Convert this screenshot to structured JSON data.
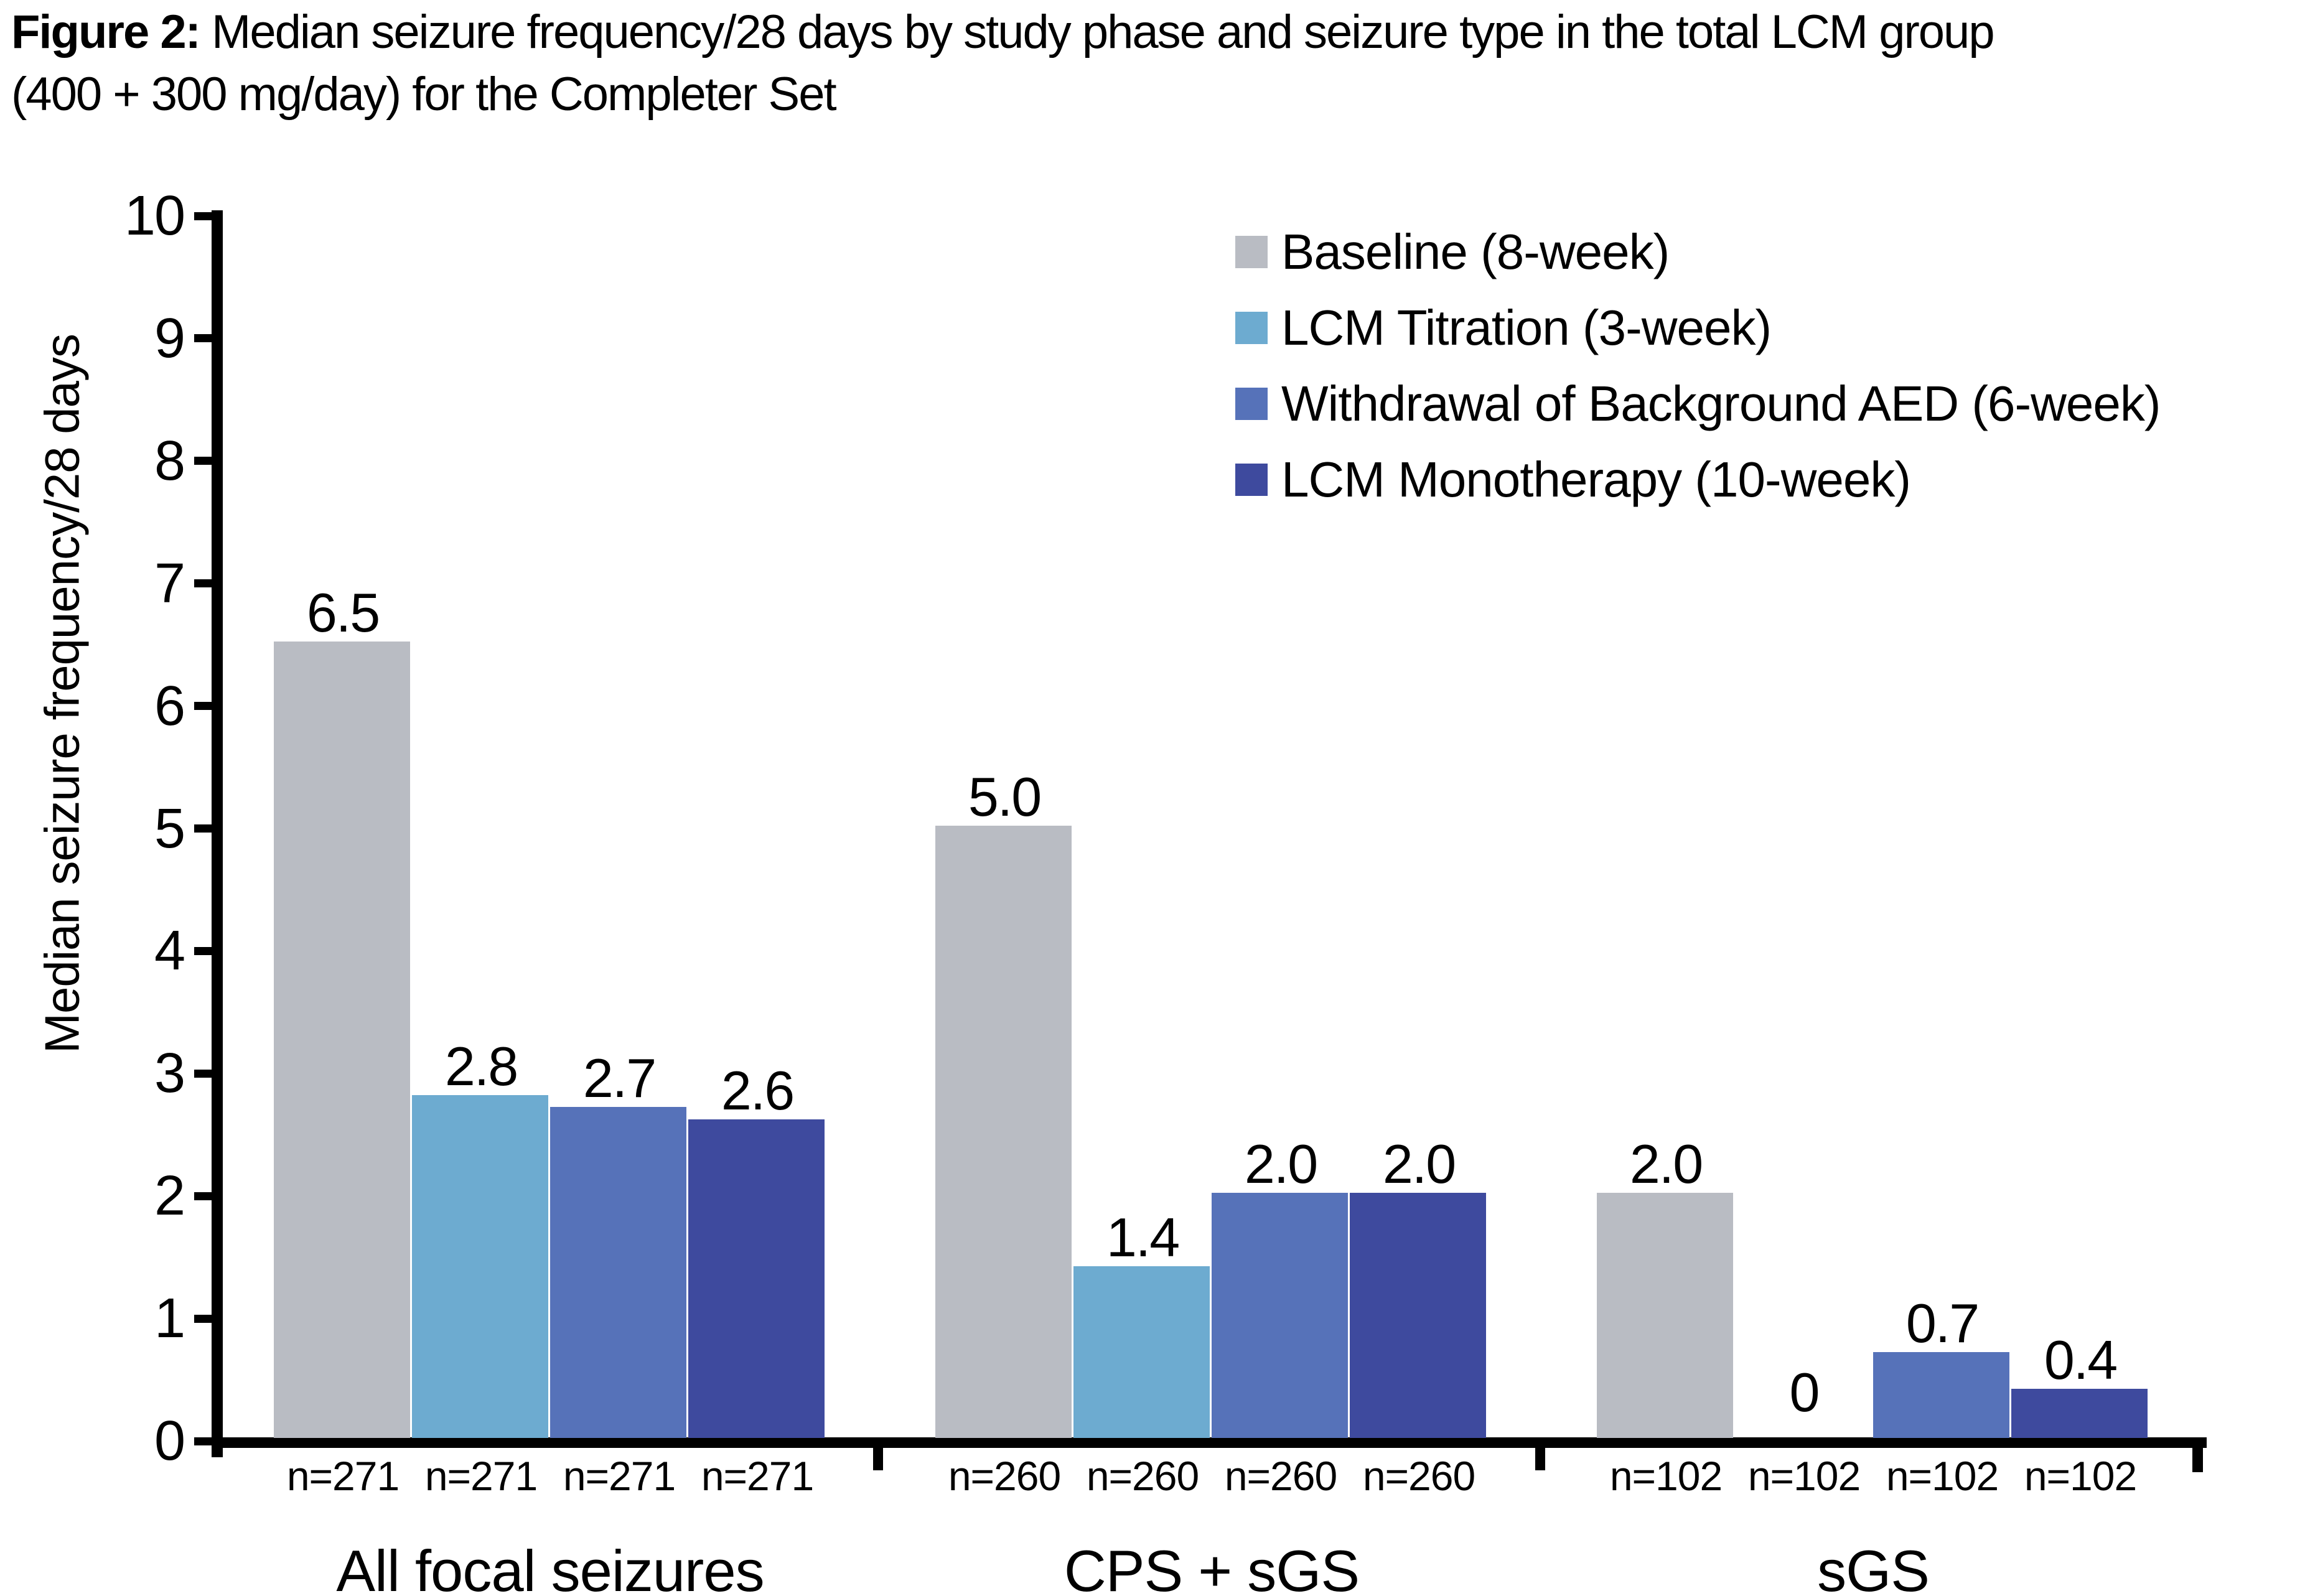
{
  "figure": {
    "title_prefix": "Figure 2:",
    "title_rest": " Median seizure frequency/28 days by study phase and seizure type in the total LCM group",
    "title_line2": "(400 + 300 mg/day) for the Completer Set"
  },
  "chart_data": {
    "type": "bar",
    "title": "Figure 2: Median seizure frequency/28 days by study phase and seizure type in the total LCM group (400 + 300 mg/day) for the Completer Set",
    "xlabel": "",
    "ylabel": "Median seizure frequency/28 days",
    "ylim": [
      0,
      10
    ],
    "yticks": [
      0,
      1,
      2,
      3,
      4,
      5,
      6,
      7,
      8,
      9,
      10
    ],
    "grid": false,
    "legend_position": "top-right-inside",
    "categories": [
      "All focal seizures",
      "CPS + sGS",
      "sGS"
    ],
    "series": [
      {
        "name": "Baseline (8-week)",
        "color": "#b9bcc3",
        "values": [
          6.5,
          5.0,
          2.0
        ],
        "value_labels": [
          "6.5",
          "5.0",
          "2.0"
        ]
      },
      {
        "name": "LCM Titration (3-week)",
        "color": "#6dabd0",
        "values": [
          2.8,
          1.4,
          0
        ],
        "value_labels": [
          "2.8",
          "1.4",
          "0"
        ]
      },
      {
        "name": "Withdrawal of Background AED (6-week)",
        "color": "#5672b9",
        "values": [
          2.7,
          2.0,
          0.7
        ],
        "value_labels": [
          "2.7",
          "2.0",
          "0.7"
        ]
      },
      {
        "name": "LCM Monotherapy (10-week)",
        "color": "#3e4a9e",
        "values": [
          2.6,
          2.0,
          0.4
        ],
        "value_labels": [
          "2.6",
          "2.0",
          "0.4"
        ]
      }
    ],
    "n_labels": [
      [
        "n=271",
        "n=271",
        "n=271",
        "n=271"
      ],
      [
        "n=260",
        "n=260",
        "n=260",
        "n=260"
      ],
      [
        "n=102",
        "n=102",
        "n=102",
        "n=102"
      ]
    ],
    "text_color": "#000000",
    "axis_color": "#000000",
    "background_color": "#ffffff"
  }
}
